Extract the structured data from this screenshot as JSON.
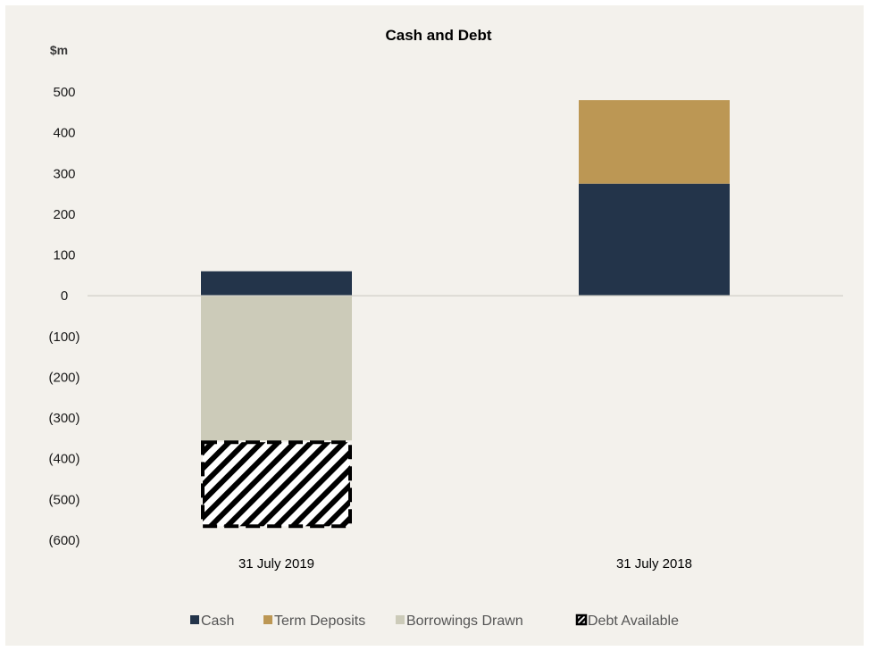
{
  "chart_data": {
    "type": "bar",
    "stacked": true,
    "title": "Cash and Debt",
    "unit_label": "$m",
    "categories": [
      "31 July 2019",
      "31 July 2018"
    ],
    "series": [
      {
        "name": "Cash",
        "values": [
          60,
          275
        ],
        "color": "#23344a",
        "pattern": "solid"
      },
      {
        "name": "Term Deposits",
        "values": [
          0,
          205
        ],
        "color": "#bc9754",
        "pattern": "solid"
      },
      {
        "name": "Borrowings Drawn",
        "values": [
          -355,
          0
        ],
        "color": "#cccbb9",
        "pattern": "solid"
      },
      {
        "name": "Debt Available",
        "values": [
          -215,
          0
        ],
        "color": "#000000",
        "pattern": "hatched-dashed"
      }
    ],
    "ylim": [
      -600,
      500
    ],
    "yticks": [
      500,
      400,
      300,
      200,
      100,
      0,
      -100,
      -200,
      -300,
      -400,
      -500,
      -600
    ],
    "ytick_labels": [
      "500",
      "400",
      "300",
      "200",
      "100",
      "0",
      "(100)",
      "(200)",
      "(300)",
      "(400)",
      "(500)",
      "(600)"
    ],
    "grid": false,
    "zero_line": true,
    "legend_position": "bottom"
  }
}
